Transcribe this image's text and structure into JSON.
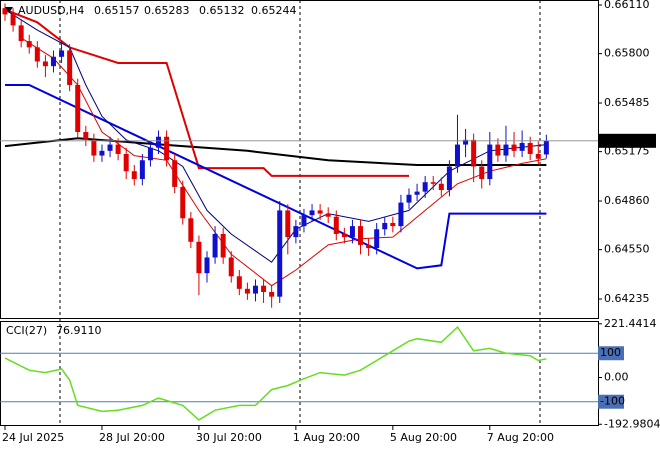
{
  "chart_data": [
    {
      "type": "candlestick",
      "symbol": "AUDUSD,H4",
      "categories": [
        "24 Jul 2025",
        null,
        null,
        null,
        null,
        null,
        null,
        null,
        null,
        null,
        null,
        null,
        "28 Jul 20:00",
        null,
        null,
        null,
        null,
        null,
        null,
        null,
        null,
        null,
        null,
        null,
        "30 Jul 20:00",
        null,
        null,
        null,
        null,
        null,
        null,
        null,
        null,
        null,
        null,
        null,
        "1 Aug 20:00",
        null,
        null,
        null,
        null,
        null,
        null,
        null,
        null,
        null,
        null,
        null,
        "5 Aug 20:00",
        null,
        null,
        null,
        null,
        null,
        null,
        null,
        null,
        null,
        null,
        null,
        "7 Aug 20:00",
        null,
        null,
        null,
        null,
        null,
        null,
        null
      ],
      "open": [
        0.6609,
        0.6605,
        0.6598,
        0.6588,
        0.6584,
        0.6575,
        0.6572,
        0.6578,
        0.6582,
        0.656,
        0.653,
        0.6525,
        0.6515,
        0.6518,
        0.6522,
        0.6516,
        0.6505,
        0.65,
        0.6512,
        0.652,
        0.6527,
        0.6512,
        0.6495,
        0.6475,
        0.646,
        0.644,
        0.645,
        0.6465,
        0.645,
        0.6438,
        0.643,
        0.6427,
        0.6432,
        0.6428,
        0.6425,
        0.648,
        0.6463,
        0.647,
        0.6477,
        0.648,
        0.6478,
        0.6476,
        0.6465,
        0.6463,
        0.647,
        0.6458,
        0.6456,
        0.6468,
        0.6472,
        0.647,
        0.6485,
        0.649,
        0.6492,
        0.6498,
        0.6497,
        0.6493,
        0.6508,
        0.6522,
        0.6525,
        0.6508,
        0.65,
        0.6522,
        0.6515,
        0.6522,
        0.6518,
        0.6523,
        0.6516,
        0.65157
      ],
      "high": [
        0.6612,
        0.6609,
        0.6602,
        0.6592,
        0.6588,
        0.6579,
        0.6582,
        0.6588,
        0.6586,
        0.6564,
        0.6534,
        0.6529,
        0.6522,
        0.6527,
        0.6526,
        0.652,
        0.6509,
        0.6516,
        0.6524,
        0.6531,
        0.6531,
        0.6516,
        0.6499,
        0.6479,
        0.6464,
        0.6454,
        0.647,
        0.6469,
        0.6454,
        0.6442,
        0.6434,
        0.6436,
        0.6436,
        0.6432,
        0.6486,
        0.6484,
        0.6474,
        0.6481,
        0.6484,
        0.6484,
        0.6482,
        0.648,
        0.6469,
        0.6474,
        0.6474,
        0.6462,
        0.6472,
        0.6476,
        0.6476,
        0.649,
        0.6494,
        0.6497,
        0.6502,
        0.6502,
        0.6501,
        0.6512,
        0.6541,
        0.6532,
        0.6529,
        0.6512,
        0.653,
        0.6526,
        0.6534,
        0.653,
        0.6531,
        0.6527,
        0.6524,
        0.65283
      ],
      "low": [
        0.6601,
        0.6594,
        0.6584,
        0.658,
        0.6571,
        0.6565,
        0.6568,
        0.6574,
        0.6556,
        0.6526,
        0.6521,
        0.6511,
        0.6511,
        0.6514,
        0.6512,
        0.65,
        0.6496,
        0.6496,
        0.6508,
        0.6516,
        0.6508,
        0.6491,
        0.6471,
        0.6456,
        0.6426,
        0.6434,
        0.6446,
        0.6446,
        0.6434,
        0.6426,
        0.6423,
        0.6422,
        0.6421,
        0.6418,
        0.6421,
        0.6452,
        0.6459,
        0.6466,
        0.6473,
        0.6474,
        0.6472,
        0.6461,
        0.6459,
        0.6459,
        0.6452,
        0.6451,
        0.6452,
        0.6464,
        0.6466,
        0.6466,
        0.6481,
        0.6486,
        0.6488,
        0.6493,
        0.6489,
        0.6489,
        0.6504,
        0.6514,
        0.6498,
        0.6494,
        0.6496,
        0.6511,
        0.6511,
        0.6514,
        0.6514,
        0.6512,
        0.6509,
        0.65132
      ],
      "close": [
        0.6605,
        0.6598,
        0.6588,
        0.6584,
        0.6575,
        0.6572,
        0.6578,
        0.6582,
        0.656,
        0.653,
        0.6525,
        0.6515,
        0.6518,
        0.6522,
        0.6516,
        0.6505,
        0.65,
        0.6512,
        0.652,
        0.6527,
        0.6512,
        0.6495,
        0.6475,
        0.646,
        0.644,
        0.645,
        0.6465,
        0.645,
        0.6438,
        0.643,
        0.6427,
        0.6432,
        0.6428,
        0.6425,
        0.648,
        0.6463,
        0.647,
        0.6477,
        0.648,
        0.6478,
        0.6476,
        0.6465,
        0.6463,
        0.647,
        0.6458,
        0.6456,
        0.6468,
        0.6472,
        0.647,
        0.6485,
        0.649,
        0.6492,
        0.6498,
        0.6497,
        0.6493,
        0.6508,
        0.6522,
        0.6525,
        0.6508,
        0.65,
        0.6522,
        0.6515,
        0.6522,
        0.6518,
        0.6523,
        0.6516,
        0.6513,
        0.65244
      ],
      "up_color": "#1010d0",
      "down_color": "#e00000",
      "series": [
        {
          "color": "#000000",
          "line_width": 2,
          "x": [
            0,
            9,
            22,
            30,
            40,
            51,
            67
          ],
          "values": [
            0.6521,
            0.6526,
            0.6521,
            0.6518,
            0.6512,
            0.6509,
            0.6509
          ]
        },
        {
          "color": "#e00000",
          "line_width": 2,
          "x": [
            0,
            4,
            8,
            14,
            20,
            24,
            32,
            33,
            50
          ],
          "values": [
            0.6608,
            0.66,
            0.6584,
            0.6574,
            0.6574,
            0.6507,
            0.6507,
            0.6502,
            0.6502
          ]
        },
        {
          "color": "#0000e0",
          "line_width": 2,
          "x": [
            0,
            3,
            51,
            54,
            55,
            67
          ],
          "values": [
            0.656,
            0.656,
            0.6443,
            0.6445,
            0.6478,
            0.6478
          ]
        },
        {
          "color": "#000080",
          "line_width": 1,
          "x": [
            0,
            4,
            8,
            10,
            12,
            15,
            19,
            22,
            25,
            28,
            33,
            36,
            40,
            45,
            50,
            55,
            60,
            67
          ],
          "values": [
            0.6608,
            0.6595,
            0.6584,
            0.656,
            0.654,
            0.6525,
            0.6518,
            0.6508,
            0.648,
            0.6465,
            0.6447,
            0.6468,
            0.6478,
            0.6473,
            0.648,
            0.6505,
            0.6518,
            0.6522
          ]
        },
        {
          "color": "#e00000",
          "line_width": 1,
          "x": [
            2,
            6,
            9,
            12,
            16,
            20,
            24,
            28,
            33,
            36,
            40,
            44,
            48,
            52,
            56,
            60,
            64,
            67
          ],
          "values": [
            0.659,
            0.6577,
            0.656,
            0.653,
            0.6515,
            0.6512,
            0.648,
            0.6452,
            0.6432,
            0.6442,
            0.6458,
            0.6462,
            0.6463,
            0.648,
            0.6497,
            0.6505,
            0.651,
            0.6513
          ]
        }
      ],
      "ylim": [
        0.64114,
        0.66142
      ],
      "yticks": [
        {
          "value": 0.6611,
          "label": "0.66110"
        },
        {
          "value": 0.658,
          "label": "0.65800"
        },
        0.65485,
        0.65175,
        {
          "value": 0.6486,
          "label": "0.64860"
        },
        {
          "value": 0.6455,
          "label": "0.64550"
        },
        0.64235
      ]
    },
    {
      "type": "line",
      "title": "CCI(27)",
      "last_value_label": "76.9110",
      "series": [
        {
          "color": "#66dd22",
          "x": [
            0,
            3,
            5,
            7,
            8,
            9,
            12,
            14,
            17,
            19,
            22,
            24,
            26,
            29,
            31,
            33,
            35,
            37,
            39,
            42,
            44,
            46,
            48,
            50,
            51,
            54,
            56,
            58,
            60,
            62,
            65,
            66,
            67
          ],
          "values": [
            80,
            30,
            20,
            35,
            -10,
            -115,
            -140,
            -135,
            -115,
            -85,
            -115,
            -175,
            -135,
            -115,
            -115,
            -50,
            -33,
            -5,
            20,
            10,
            30,
            70,
            110,
            150,
            160,
            145,
            208,
            110,
            120,
            100,
            90,
            70,
            76.911
          ]
        }
      ],
      "levels": [
        100,
        -100
      ],
      "ylim": [
        -196,
        233
      ],
      "yticks": [
        221.4414,
        {
          "value": 0,
          "label": "0.00"
        },
        -192.9804
      ]
    }
  ]
}
